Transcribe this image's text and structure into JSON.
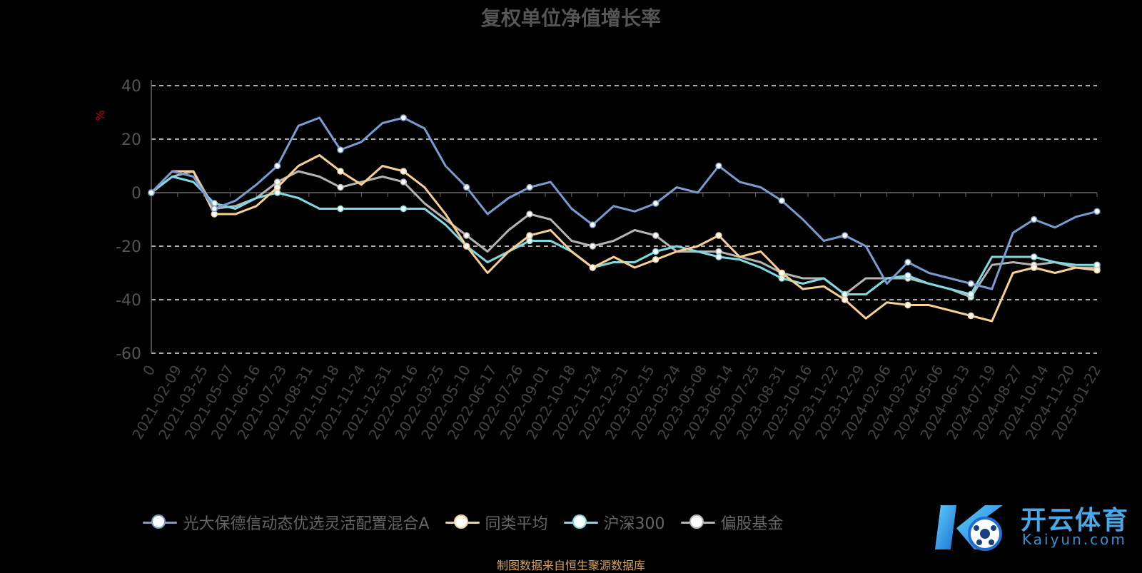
{
  "chart_data": {
    "type": "line",
    "title": "复权单位净值增长率",
    "ylabel": "%",
    "ylim": [
      -60,
      40
    ],
    "yticks": [
      40,
      20,
      0,
      -20,
      -40,
      -60
    ],
    "xtick_labels": [
      "0",
      "2021-02-09",
      "2021-03-25",
      "2021-05-07",
      "2021-06-16",
      "2021-07-23",
      "2021-08-31",
      "2021-10-18",
      "2021-11-24",
      "2021-12-31",
      "2022-02-16",
      "2022-03-25",
      "2022-05-10",
      "2022-06-17",
      "2022-07-26",
      "2022-09-01",
      "2022-10-18",
      "2022-11-24",
      "2022-12-31",
      "2023-02-15",
      "2023-03-24",
      "2023-05-08",
      "2023-06-14",
      "2023-07-25",
      "2023-08-31",
      "2023-10-16",
      "2023-11-22",
      "2023-12-29",
      "2024-02-06",
      "2024-03-22",
      "2024-05-06",
      "2024-06-13",
      "2024-07-19",
      "2024-08-27",
      "2024-10-14",
      "2024-11-20",
      "2025-01-22"
    ],
    "grid": "dashed horizontal",
    "legend": "bottom",
    "series": [
      {
        "name": "光大保德信动态优选灵活配置混合A",
        "color": "#7b9bd0",
        "values": [
          0,
          8,
          6,
          -6,
          -3,
          3,
          10,
          25,
          28,
          16,
          19,
          26,
          28,
          24,
          10,
          2,
          -8,
          -2,
          2,
          4,
          -6,
          -12,
          -5,
          -7,
          -4,
          2,
          0,
          10,
          4,
          2,
          -3,
          -10,
          -18,
          -16,
          -20,
          -34,
          -26,
          -30,
          -32,
          -34,
          -36,
          -15,
          -10,
          -13,
          -9,
          -7
        ]
      },
      {
        "name": "同类平均",
        "color": "#f6cf92",
        "values": [
          0,
          8,
          8,
          -8,
          -8,
          -5,
          2,
          10,
          14,
          8,
          3,
          10,
          8,
          2,
          -8,
          -20,
          -30,
          -22,
          -16,
          -14,
          -22,
          -28,
          -24,
          -28,
          -25,
          -22,
          -20,
          -16,
          -24,
          -22,
          -30,
          -36,
          -35,
          -40,
          -47,
          -41,
          -42,
          -42,
          -44,
          -46,
          -48,
          -30,
          -28,
          -30,
          -28,
          -29
        ]
      },
      {
        "name": "沪深300",
        "color": "#7fd9e0",
        "values": [
          0,
          6,
          4,
          -4,
          -6,
          -2,
          0,
          -2,
          -6,
          -6,
          -6,
          -6,
          -6,
          -6,
          -12,
          -20,
          -26,
          -22,
          -18,
          -18,
          -22,
          -28,
          -26,
          -26,
          -22,
          -20,
          -22,
          -24,
          -25,
          -28,
          -32,
          -34,
          -32,
          -38,
          -38,
          -32,
          -31,
          -34,
          -36,
          -38,
          -24,
          -24,
          -24,
          -26,
          -27,
          -27
        ]
      },
      {
        "name": "偏股基金",
        "color": "#b4b4b4",
        "values": [
          0,
          6,
          8,
          -6,
          -5,
          -2,
          4,
          8,
          6,
          2,
          4,
          6,
          4,
          -4,
          -10,
          -16,
          -22,
          -14,
          -8,
          -10,
          -18,
          -20,
          -18,
          -14,
          -16,
          -22,
          -22,
          -22,
          -24,
          -26,
          -30,
          -32,
          -32,
          -38,
          -32,
          -32,
          -32,
          -34,
          -36,
          -39,
          -27,
          -26,
          -27,
          -26,
          -28,
          -28
        ]
      }
    ]
  },
  "legend_items": [
    {
      "label": "光大保德信动态优选灵活配置混合A",
      "color": "#7b9bd0"
    },
    {
      "label": "同类平均",
      "color": "#f6cf92"
    },
    {
      "label": "沪深300",
      "color": "#7fd9e0"
    },
    {
      "label": "偏股基金",
      "color": "#b4b4b4"
    }
  ],
  "source_note": "制图数据来自恒生聚源数据库",
  "logo": {
    "text_cn": "开云体育",
    "text_en": "Kaiyun.com"
  }
}
